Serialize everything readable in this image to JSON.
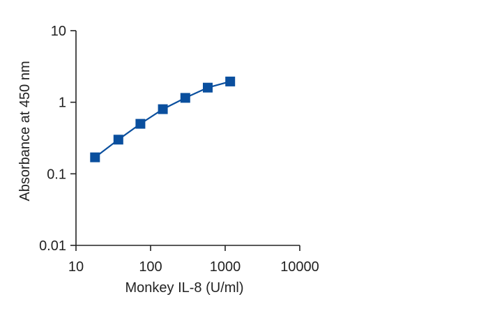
{
  "chart_data": {
    "type": "line",
    "title": "",
    "xlabel": "Monkey IL-8 (U/ml)",
    "ylabel": "Absorbance at 450 nm",
    "x_scale": "log",
    "y_scale": "log",
    "xlim": [
      10,
      10000
    ],
    "ylim": [
      0.01,
      10
    ],
    "x_ticks": [
      10,
      100,
      1000,
      10000
    ],
    "x_tick_labels": [
      "10",
      "100",
      "1000",
      "10000"
    ],
    "y_ticks": [
      0.01,
      0.1,
      1,
      10
    ],
    "y_tick_labels": [
      "0.01",
      "0.1",
      "1",
      "10"
    ],
    "grid": false,
    "legend": "none",
    "series": [
      {
        "color": "#0a4f9e",
        "marker": "square",
        "points": [
          {
            "x": 18,
            "y": 0.17
          },
          {
            "x": 37,
            "y": 0.3
          },
          {
            "x": 73,
            "y": 0.5
          },
          {
            "x": 146,
            "y": 0.8
          },
          {
            "x": 292,
            "y": 1.15
          },
          {
            "x": 584,
            "y": 1.6
          },
          {
            "x": 1168,
            "y": 1.95
          }
        ]
      }
    ]
  }
}
